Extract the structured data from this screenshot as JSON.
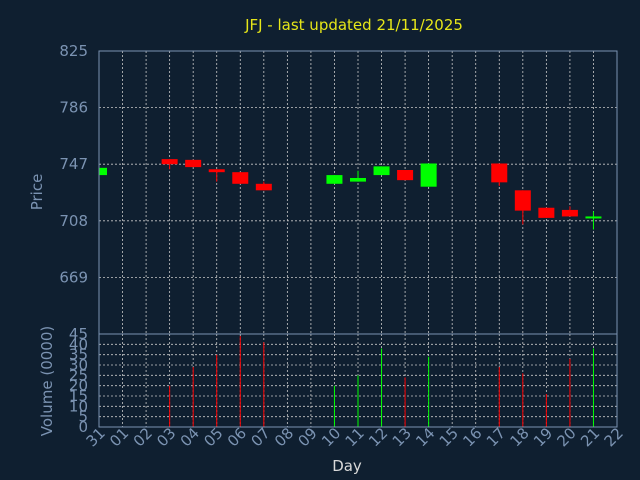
{
  "chart_data": {
    "type": "candlestick",
    "title": "JFJ - last updated 21/11/2025",
    "xlabel": "Day",
    "up_color": "#00ff00",
    "down_color": "#ff0000",
    "background": "#0f1f30",
    "text_color": "#7b93b2",
    "title_color": "#e6e619",
    "grid": true,
    "x_ticks": [
      "31",
      "01",
      "02",
      "03",
      "04",
      "05",
      "06",
      "07",
      "08",
      "09",
      "10",
      "11",
      "12",
      "13",
      "14",
      "15",
      "16",
      "17",
      "18",
      "19",
      "20",
      "21",
      "22"
    ],
    "price_panel": {
      "ylabel": "Price",
      "ylim": [
        825,
        630
      ],
      "yticks": [
        825,
        786,
        747,
        708,
        669
      ],
      "candles": [
        {
          "day": "31",
          "open": 739.5,
          "close": 744.5,
          "high": 744.5,
          "low": 739.5
        },
        {
          "day": "03",
          "open": 750.5,
          "close": 747.0,
          "high": 750.5,
          "low": 743.5
        },
        {
          "day": "04",
          "open": 750.0,
          "close": 745.0,
          "high": 750.0,
          "low": 745.0
        },
        {
          "day": "05",
          "open": 743.5,
          "close": 741.5,
          "high": 743.5,
          "low": 735.0
        },
        {
          "day": "06",
          "open": 741.5,
          "close": 733.5,
          "high": 741.5,
          "low": 733.5
        },
        {
          "day": "07",
          "open": 733.5,
          "close": 729.0,
          "high": 735.0,
          "low": 729.0
        },
        {
          "day": "10",
          "open": 733.5,
          "close": 739.5,
          "high": 739.5,
          "low": 733.5
        },
        {
          "day": "11",
          "open": 735.0,
          "close": 737.5,
          "high": 742.5,
          "low": 735.0
        },
        {
          "day": "12",
          "open": 739.5,
          "close": 745.5,
          "high": 745.5,
          "low": 739.5
        },
        {
          "day": "13",
          "open": 743.0,
          "close": 736.0,
          "high": 743.0,
          "low": 736.0
        },
        {
          "day": "14",
          "open": 731.5,
          "close": 747.5,
          "high": 747.5,
          "low": 731.5
        },
        {
          "day": "17",
          "open": 747.5,
          "close": 734.5,
          "high": 747.5,
          "low": 732.0
        },
        {
          "day": "18",
          "open": 729.0,
          "close": 715.0,
          "high": 729.0,
          "low": 705.5
        },
        {
          "day": "19",
          "open": 717.0,
          "close": 710.0,
          "high": 717.0,
          "low": 710.0
        },
        {
          "day": "20",
          "open": 715.5,
          "close": 711.0,
          "high": 718.0,
          "low": 711.0
        },
        {
          "day": "21",
          "open": 710.5,
          "close": 711.0,
          "high": 714.5,
          "low": 702.0
        }
      ]
    },
    "volume_panel": {
      "ylabel": "Volume (0000)",
      "ylim": [
        0,
        45
      ],
      "yticks": [
        0,
        5,
        10,
        15,
        20,
        25,
        30,
        35,
        40,
        45
      ],
      "bars": [
        {
          "day": "03",
          "value": 20,
          "direction": "down"
        },
        {
          "day": "04",
          "value": 29,
          "direction": "down"
        },
        {
          "day": "05",
          "value": 35,
          "direction": "down"
        },
        {
          "day": "06",
          "value": 44,
          "direction": "down"
        },
        {
          "day": "07",
          "value": 41,
          "direction": "down"
        },
        {
          "day": "10",
          "value": 20,
          "direction": "up"
        },
        {
          "day": "11",
          "value": 25,
          "direction": "up"
        },
        {
          "day": "12",
          "value": 38,
          "direction": "up"
        },
        {
          "day": "13",
          "value": 24,
          "direction": "down"
        },
        {
          "day": "14",
          "value": 34,
          "direction": "up"
        },
        {
          "day": "17",
          "value": 29,
          "direction": "down"
        },
        {
          "day": "18",
          "value": 26,
          "direction": "down"
        },
        {
          "day": "19",
          "value": 16,
          "direction": "down"
        },
        {
          "day": "20",
          "value": 33,
          "direction": "down"
        },
        {
          "day": "21",
          "value": 38,
          "direction": "up"
        }
      ]
    }
  }
}
